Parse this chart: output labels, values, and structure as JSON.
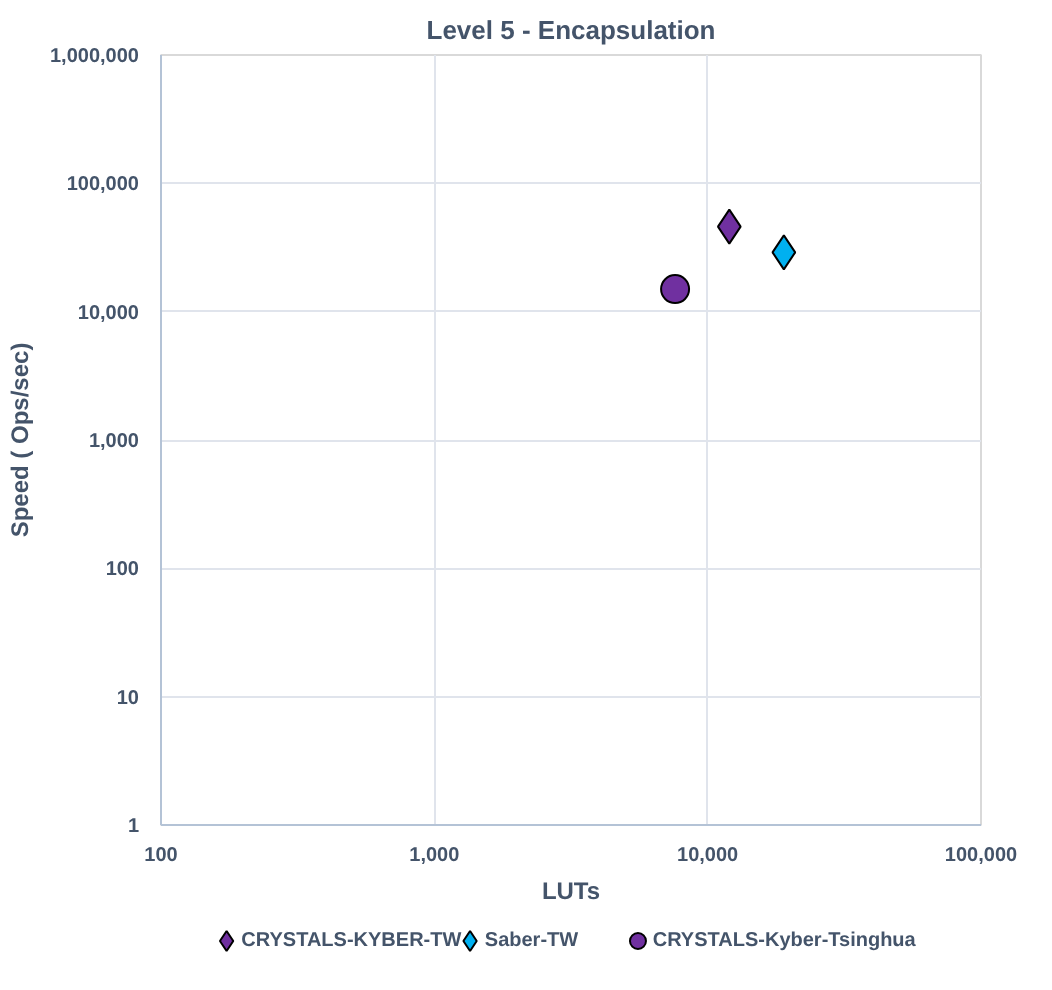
{
  "chart_data": {
    "type": "scatter",
    "title": "Level 5 - Encapsulation",
    "xlabel": "LUTs",
    "ylabel": "Speed ( Ops/sec)",
    "log": "xy",
    "grid": true,
    "legend": "bottom",
    "xlim": [
      100,
      100000
    ],
    "xticks": [
      {
        "value": 100,
        "label": "100"
      },
      {
        "value": 1000,
        "label": "1,000"
      },
      {
        "value": 10000,
        "label": "10,000"
      },
      {
        "value": 100000,
        "label": "100,000"
      }
    ],
    "ylim": [
      1,
      1000000
    ],
    "yticks": [
      {
        "value": 1,
        "label": "1"
      },
      {
        "value": 10,
        "label": "10"
      },
      {
        "value": 100,
        "label": "100"
      },
      {
        "value": 1000,
        "label": "1,000"
      },
      {
        "value": 10000,
        "label": "10,000"
      },
      {
        "value": 100000,
        "label": "100,000"
      },
      {
        "value": 1000000,
        "label": "1,000,000"
      }
    ],
    "series": [
      {
        "name": "CRYSTALS-KYBER-TW",
        "color": "#7030a0",
        "marker": "diamond",
        "x": [
          12000
        ],
        "values": [
          46000
        ]
      },
      {
        "name": "Saber-TW",
        "color": "#00b0f0",
        "marker": "diamond",
        "x": [
          19000
        ],
        "values": [
          29000
        ]
      },
      {
        "name": "CRYSTALS-Kyber-Tsinghua",
        "color": "#7030a0",
        "marker": "circle",
        "x": [
          7600
        ],
        "values": [
          15000
        ]
      }
    ]
  }
}
